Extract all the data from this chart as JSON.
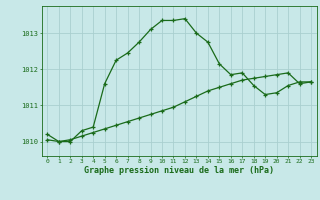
{
  "title": "Graphe pression niveau de la mer (hPa)",
  "background_color": "#c8e8e8",
  "line_color": "#1a6b1a",
  "grid_color": "#aacfcf",
  "text_color": "#1a6b1a",
  "xlim": [
    -0.5,
    23.5
  ],
  "ylim": [
    1009.6,
    1013.75
  ],
  "yticks": [
    1010,
    1011,
    1012,
    1013
  ],
  "xticks": [
    0,
    1,
    2,
    3,
    4,
    5,
    6,
    7,
    8,
    9,
    10,
    11,
    12,
    13,
    14,
    15,
    16,
    17,
    18,
    19,
    20,
    21,
    22,
    23
  ],
  "series1_x": [
    0,
    1,
    2,
    3,
    4,
    5,
    6,
    7,
    8,
    9,
    10,
    11,
    12,
    13,
    14,
    15,
    16,
    17,
    18,
    19,
    20,
    21,
    22,
    23
  ],
  "series1_y": [
    1010.2,
    1010.0,
    1010.0,
    1010.3,
    1010.4,
    1011.6,
    1012.25,
    1012.45,
    1012.75,
    1013.1,
    1013.35,
    1013.35,
    1013.4,
    1013.0,
    1012.75,
    1012.15,
    1011.85,
    1011.9,
    1011.55,
    1011.3,
    1011.35,
    1011.55,
    1011.65,
    1011.65
  ],
  "series2_x": [
    0,
    1,
    2,
    3,
    4,
    5,
    6,
    7,
    8,
    9,
    10,
    11,
    12,
    13,
    14,
    15,
    16,
    17,
    18,
    19,
    20,
    21,
    22,
    23
  ],
  "series2_y": [
    1010.05,
    1010.0,
    1010.05,
    1010.15,
    1010.25,
    1010.35,
    1010.45,
    1010.55,
    1010.65,
    1010.75,
    1010.85,
    1010.95,
    1011.1,
    1011.25,
    1011.4,
    1011.5,
    1011.6,
    1011.7,
    1011.75,
    1011.8,
    1011.85,
    1011.9,
    1011.6,
    1011.65
  ]
}
